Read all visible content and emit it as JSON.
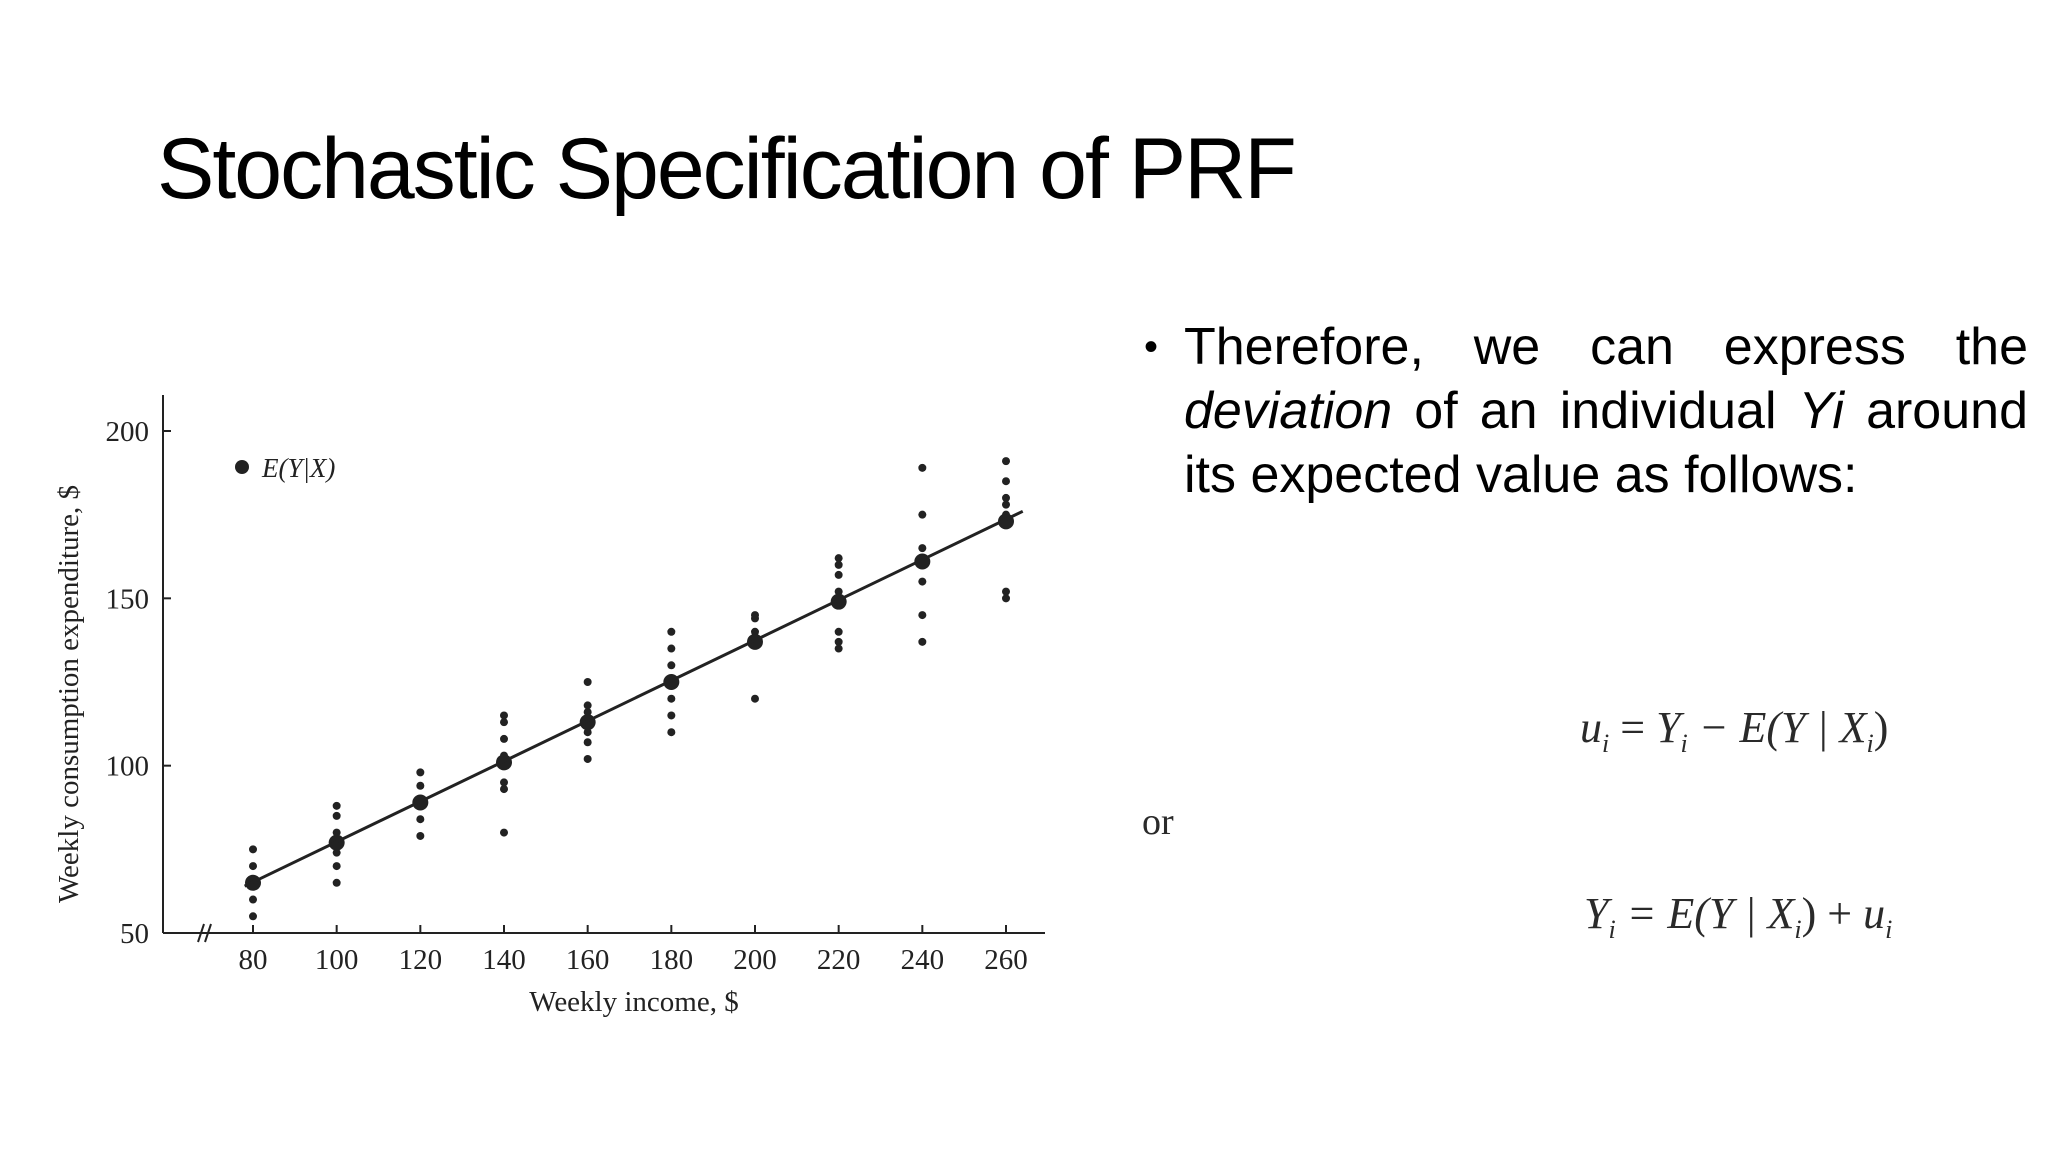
{
  "title": "Stochastic Specification of PRF",
  "bullet": {
    "part1": "Therefore, we can express the ",
    "emph1": "deviation",
    "part2": " of an individual ",
    "emph2": "Yi",
    "part3": " around its expected value as follows:"
  },
  "equations": {
    "eq1": {
      "lhs": "u",
      "lhs_sub": "i",
      "eq": " = ",
      "y": "Y",
      "y_sub": "i",
      "rest": " − E(Y | X",
      "x_sub": "i",
      "close": ")"
    },
    "or_label": "or",
    "eq2": {
      "y": "Y",
      "y_sub": "i",
      "eq": " = E(Y | X",
      "x_sub": "i",
      "close": ") + ",
      "u": "u",
      "u_sub": "i"
    }
  },
  "chart_data": {
    "type": "scatter",
    "xlabel": "Weekly income, $",
    "ylabel": "Weekly consumption expenditure, $",
    "legend_label": "E(Y|X)",
    "legend_position": "top-left",
    "xlim": [
      60,
      270
    ],
    "ylim": [
      50,
      210
    ],
    "x_ticks": [
      80,
      100,
      120,
      140,
      160,
      180,
      200,
      220,
      240,
      260
    ],
    "y_ticks": [
      50,
      100,
      150,
      200
    ],
    "axis_break": "x",
    "series": [
      {
        "points": [
          [
            80,
            55
          ],
          [
            80,
            60
          ],
          [
            80,
            65
          ],
          [
            80,
            70
          ],
          [
            80,
            75
          ],
          [
            100,
            65
          ],
          [
            100,
            70
          ],
          [
            100,
            74
          ],
          [
            100,
            80
          ],
          [
            100,
            85
          ],
          [
            100,
            88
          ],
          [
            120,
            79
          ],
          [
            120,
            84
          ],
          [
            120,
            90
          ],
          [
            120,
            94
          ],
          [
            120,
            98
          ],
          [
            140,
            80
          ],
          [
            140,
            93
          ],
          [
            140,
            95
          ],
          [
            140,
            103
          ],
          [
            140,
            108
          ],
          [
            140,
            113
          ],
          [
            140,
            115
          ],
          [
            160,
            102
          ],
          [
            160,
            107
          ],
          [
            160,
            110
          ],
          [
            160,
            116
          ],
          [
            160,
            118
          ],
          [
            160,
            125
          ],
          [
            180,
            110
          ],
          [
            180,
            115
          ],
          [
            180,
            120
          ],
          [
            180,
            130
          ],
          [
            180,
            135
          ],
          [
            180,
            140
          ],
          [
            200,
            120
          ],
          [
            200,
            136
          ],
          [
            200,
            140
          ],
          [
            200,
            144
          ],
          [
            200,
            145
          ],
          [
            220,
            135
          ],
          [
            220,
            137
          ],
          [
            220,
            140
          ],
          [
            220,
            152
          ],
          [
            220,
            157
          ],
          [
            220,
            160
          ],
          [
            220,
            162
          ],
          [
            240,
            137
          ],
          [
            240,
            145
          ],
          [
            240,
            155
          ],
          [
            240,
            165
          ],
          [
            240,
            175
          ],
          [
            240,
            189
          ],
          [
            260,
            150
          ],
          [
            260,
            152
          ],
          [
            260,
            175
          ],
          [
            260,
            178
          ],
          [
            260,
            180
          ],
          [
            260,
            185
          ],
          [
            260,
            191
          ]
        ]
      },
      {
        "points": [
          [
            80,
            65
          ],
          [
            100,
            77
          ],
          [
            120,
            89
          ],
          [
            140,
            101
          ],
          [
            160,
            113
          ],
          [
            180,
            125
          ],
          [
            200,
            137
          ],
          [
            220,
            149
          ],
          [
            240,
            161
          ],
          [
            260,
            173
          ]
        ]
      }
    ],
    "line": {
      "x": [
        78,
        264
      ],
      "y": [
        64,
        176
      ]
    }
  }
}
